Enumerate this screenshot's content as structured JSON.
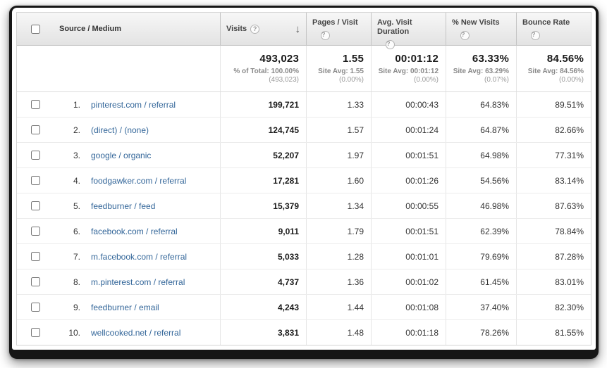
{
  "icons": {
    "help": "?",
    "sort_desc": "↓"
  },
  "colors": {
    "link": "#336699",
    "header_bg": "#e9e9e9"
  },
  "table": {
    "columns": {
      "source_medium": "Source / Medium",
      "visits": "Visits",
      "pages_visit": "Pages / Visit",
      "avg_duration": "Avg. Visit Duration",
      "new_visits": "% New Visits",
      "bounce_rate": "Bounce Rate"
    },
    "summary": {
      "visits": "493,023",
      "visits_sub1": "% of Total: 100.00%",
      "visits_sub2": "(493,023)",
      "pages": "1.55",
      "pages_sub1": "Site Avg: 1.55",
      "pages_sub2": "(0.00%)",
      "duration": "00:01:12",
      "duration_sub1": "Site Avg: 00:01:12",
      "duration_sub2": "(0.00%)",
      "new": "63.33%",
      "new_sub1": "Site Avg: 63.29%",
      "new_sub2": "(0.07%)",
      "bounce": "84.56%",
      "bounce_sub1": "Site Avg: 84.56%",
      "bounce_sub2": "(0.00%)"
    },
    "rows": [
      {
        "rank": "1.",
        "source": "pinterest.com / referral",
        "visits": "199,721",
        "pages": "1.33",
        "duration": "00:00:43",
        "new": "64.83%",
        "bounce": "89.51%"
      },
      {
        "rank": "2.",
        "source": "(direct) / (none)",
        "visits": "124,745",
        "pages": "1.57",
        "duration": "00:01:24",
        "new": "64.87%",
        "bounce": "82.66%"
      },
      {
        "rank": "3.",
        "source": "google / organic",
        "visits": "52,207",
        "pages": "1.97",
        "duration": "00:01:51",
        "new": "64.98%",
        "bounce": "77.31%"
      },
      {
        "rank": "4.",
        "source": "foodgawker.com / referral",
        "visits": "17,281",
        "pages": "1.60",
        "duration": "00:01:26",
        "new": "54.56%",
        "bounce": "83.14%"
      },
      {
        "rank": "5.",
        "source": "feedburner / feed",
        "visits": "15,379",
        "pages": "1.34",
        "duration": "00:00:55",
        "new": "46.98%",
        "bounce": "87.63%"
      },
      {
        "rank": "6.",
        "source": "facebook.com / referral",
        "visits": "9,011",
        "pages": "1.79",
        "duration": "00:01:51",
        "new": "62.39%",
        "bounce": "78.84%"
      },
      {
        "rank": "7.",
        "source": "m.facebook.com / referral",
        "visits": "5,033",
        "pages": "1.28",
        "duration": "00:01:01",
        "new": "79.69%",
        "bounce": "87.28%"
      },
      {
        "rank": "8.",
        "source": "m.pinterest.com / referral",
        "visits": "4,737",
        "pages": "1.36",
        "duration": "00:01:02",
        "new": "61.45%",
        "bounce": "83.01%"
      },
      {
        "rank": "9.",
        "source": "feedburner / email",
        "visits": "4,243",
        "pages": "1.44",
        "duration": "00:01:08",
        "new": "37.40%",
        "bounce": "82.30%"
      },
      {
        "rank": "10.",
        "source": "wellcooked.net / referral",
        "visits": "3,831",
        "pages": "1.48",
        "duration": "00:01:18",
        "new": "78.26%",
        "bounce": "81.55%"
      }
    ]
  }
}
